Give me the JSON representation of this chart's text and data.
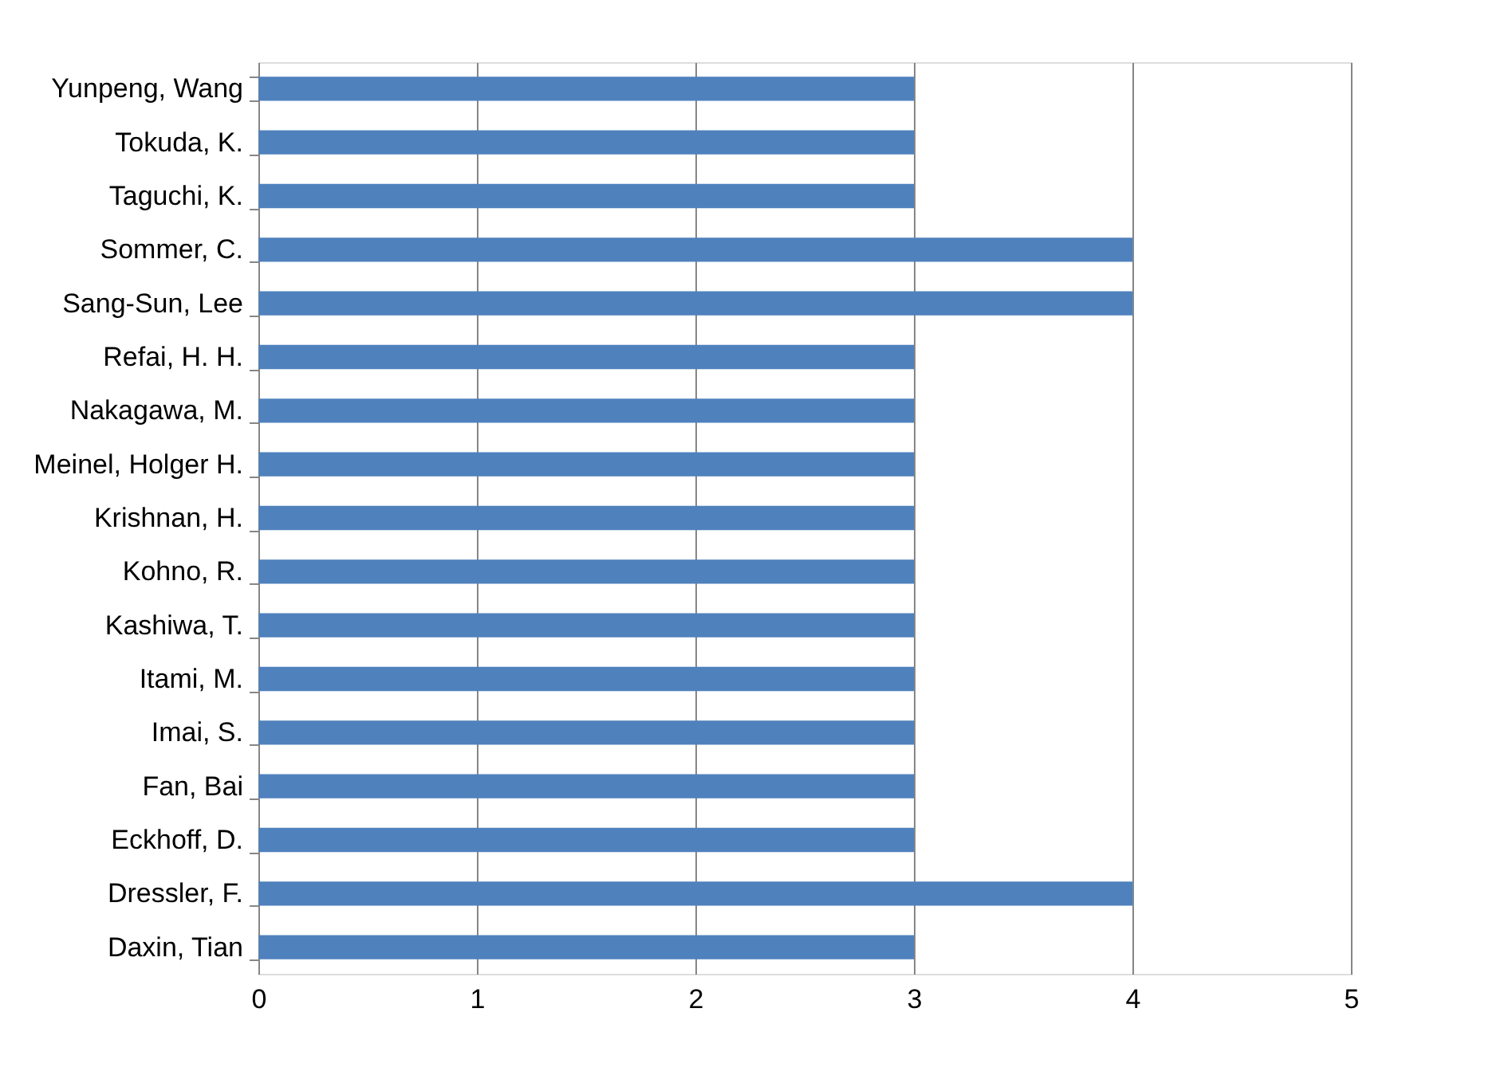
{
  "chart_data": {
    "type": "bar",
    "orientation": "horizontal",
    "categories": [
      "Yunpeng, Wang",
      "Tokuda, K.",
      "Taguchi, K.",
      "Sommer, C.",
      "Sang-Sun, Lee",
      "Refai, H. H.",
      "Nakagawa, M.",
      "Meinel, Holger H.",
      "Krishnan, H.",
      "Kohno, R.",
      "Kashiwa, T.",
      "Itami, M.",
      "Imai, S.",
      "Fan, Bai",
      "Eckhoff, D.",
      "Dressler, F.",
      "Daxin, Tian"
    ],
    "values": [
      3,
      3,
      3,
      4,
      4,
      3,
      3,
      3,
      3,
      3,
      3,
      3,
      3,
      3,
      3,
      4,
      3
    ],
    "color": "#4f81bd",
    "xlim": [
      0,
      5
    ],
    "xticks": [
      0,
      1,
      2,
      3,
      4,
      5
    ],
    "grid": "x"
  }
}
